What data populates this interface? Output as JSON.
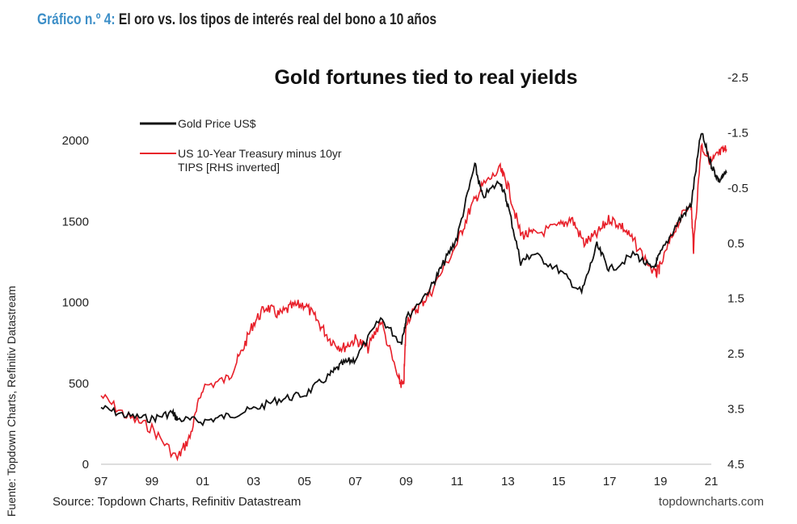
{
  "heading": {
    "label": "Gráfico n.º 4:",
    "text": "El oro vs. los tipos de interés real del bono a 10 años"
  },
  "side_source": "Fuente: Topdown Charts, Refinitiv Datastream",
  "chart_data": {
    "type": "line",
    "title": "Gold fortunes tied to real yields",
    "source": "Source: Topdown Charts, Refinitiv Datastream",
    "watermark": "topdowncharts.com",
    "x_ticks": [
      "97",
      "99",
      "01",
      "03",
      "05",
      "07",
      "09",
      "11",
      "13",
      "15",
      "17",
      "19",
      "21"
    ],
    "xlim": [
      1997,
      2021
    ],
    "y_left": {
      "ticks": [
        "0",
        "500",
        "1000",
        "1500",
        "2000"
      ],
      "lim": [
        0,
        2000
      ]
    },
    "y_right": {
      "ticks": [
        "-2.5",
        "-1.5",
        "-0.5",
        "0.5",
        "1.5",
        "2.5",
        "3.5",
        "4.5"
      ],
      "lim": [
        -2.5,
        4.5
      ],
      "inverted": true
    },
    "grid": false,
    "legend_placement": "top-left",
    "series": [
      {
        "name": "Gold Price US$",
        "axis": "left",
        "color": "#111111",
        "x": [
          1997,
          1998,
          1999,
          1999.8,
          2000,
          2001,
          2002,
          2003,
          2004,
          2005,
          2006,
          2006.5,
          2007,
          2008,
          2008.8,
          2009,
          2010,
          2010.5,
          2011,
          2011.7,
          2012,
          2012.7,
          2013,
          2013.5,
          2014,
          2015,
          2015.9,
          2016.5,
          2017,
          2018,
          2018.7,
          2019,
          2019.7,
          2020.2,
          2020.6,
          2021,
          2021.3,
          2021.6
        ],
        "y": [
          350,
          300,
          280,
          320,
          280,
          265,
          300,
          340,
          400,
          430,
          550,
          620,
          650,
          900,
          750,
          900,
          1100,
          1250,
          1400,
          1850,
          1650,
          1750,
          1600,
          1250,
          1300,
          1200,
          1060,
          1350,
          1200,
          1300,
          1200,
          1300,
          1500,
          1600,
          2050,
          1850,
          1750,
          1800
        ]
      },
      {
        "name": "US 10-Year Treasury minus 10yr TIPS [RHS inverted]",
        "axis": "right",
        "color": "#e8202a",
        "x": [
          1997,
          1998,
          1999,
          2000,
          2000.5,
          2001,
          2002,
          2002.5,
          2003,
          2003.5,
          2004,
          2004.5,
          2005,
          2005.5,
          2006,
          2006.5,
          2007,
          2007.5,
          2008,
          2008.7,
          2008.9,
          2009,
          2009.5,
          2010,
          2011,
          2011.5,
          2012,
          2012.7,
          2013,
          2013.5,
          2014,
          2015,
          2015.5,
          2016,
          2016.5,
          2017,
          2017.5,
          2018,
          2018.8,
          2019,
          2019.6,
          2020.2,
          2020.3,
          2020.6,
          2021,
          2021.3,
          2021.6
        ],
        "y": [
          3.26,
          3.63,
          3.85,
          4.4,
          4.0,
          3.1,
          2.95,
          2.5,
          1.94,
          1.65,
          1.8,
          1.65,
          1.6,
          1.9,
          2.24,
          2.4,
          2.24,
          2.4,
          1.9,
          2.97,
          3.1,
          1.9,
          1.65,
          1.36,
          0.5,
          -0.1,
          -0.54,
          -0.83,
          -0.54,
          0.34,
          0.34,
          0.2,
          0.05,
          0.5,
          0.34,
          0.05,
          0.2,
          0.5,
          1.07,
          0.92,
          0.2,
          -0.25,
          0.6,
          -1.27,
          -0.97,
          -1.12,
          -1.2
        ]
      }
    ]
  }
}
